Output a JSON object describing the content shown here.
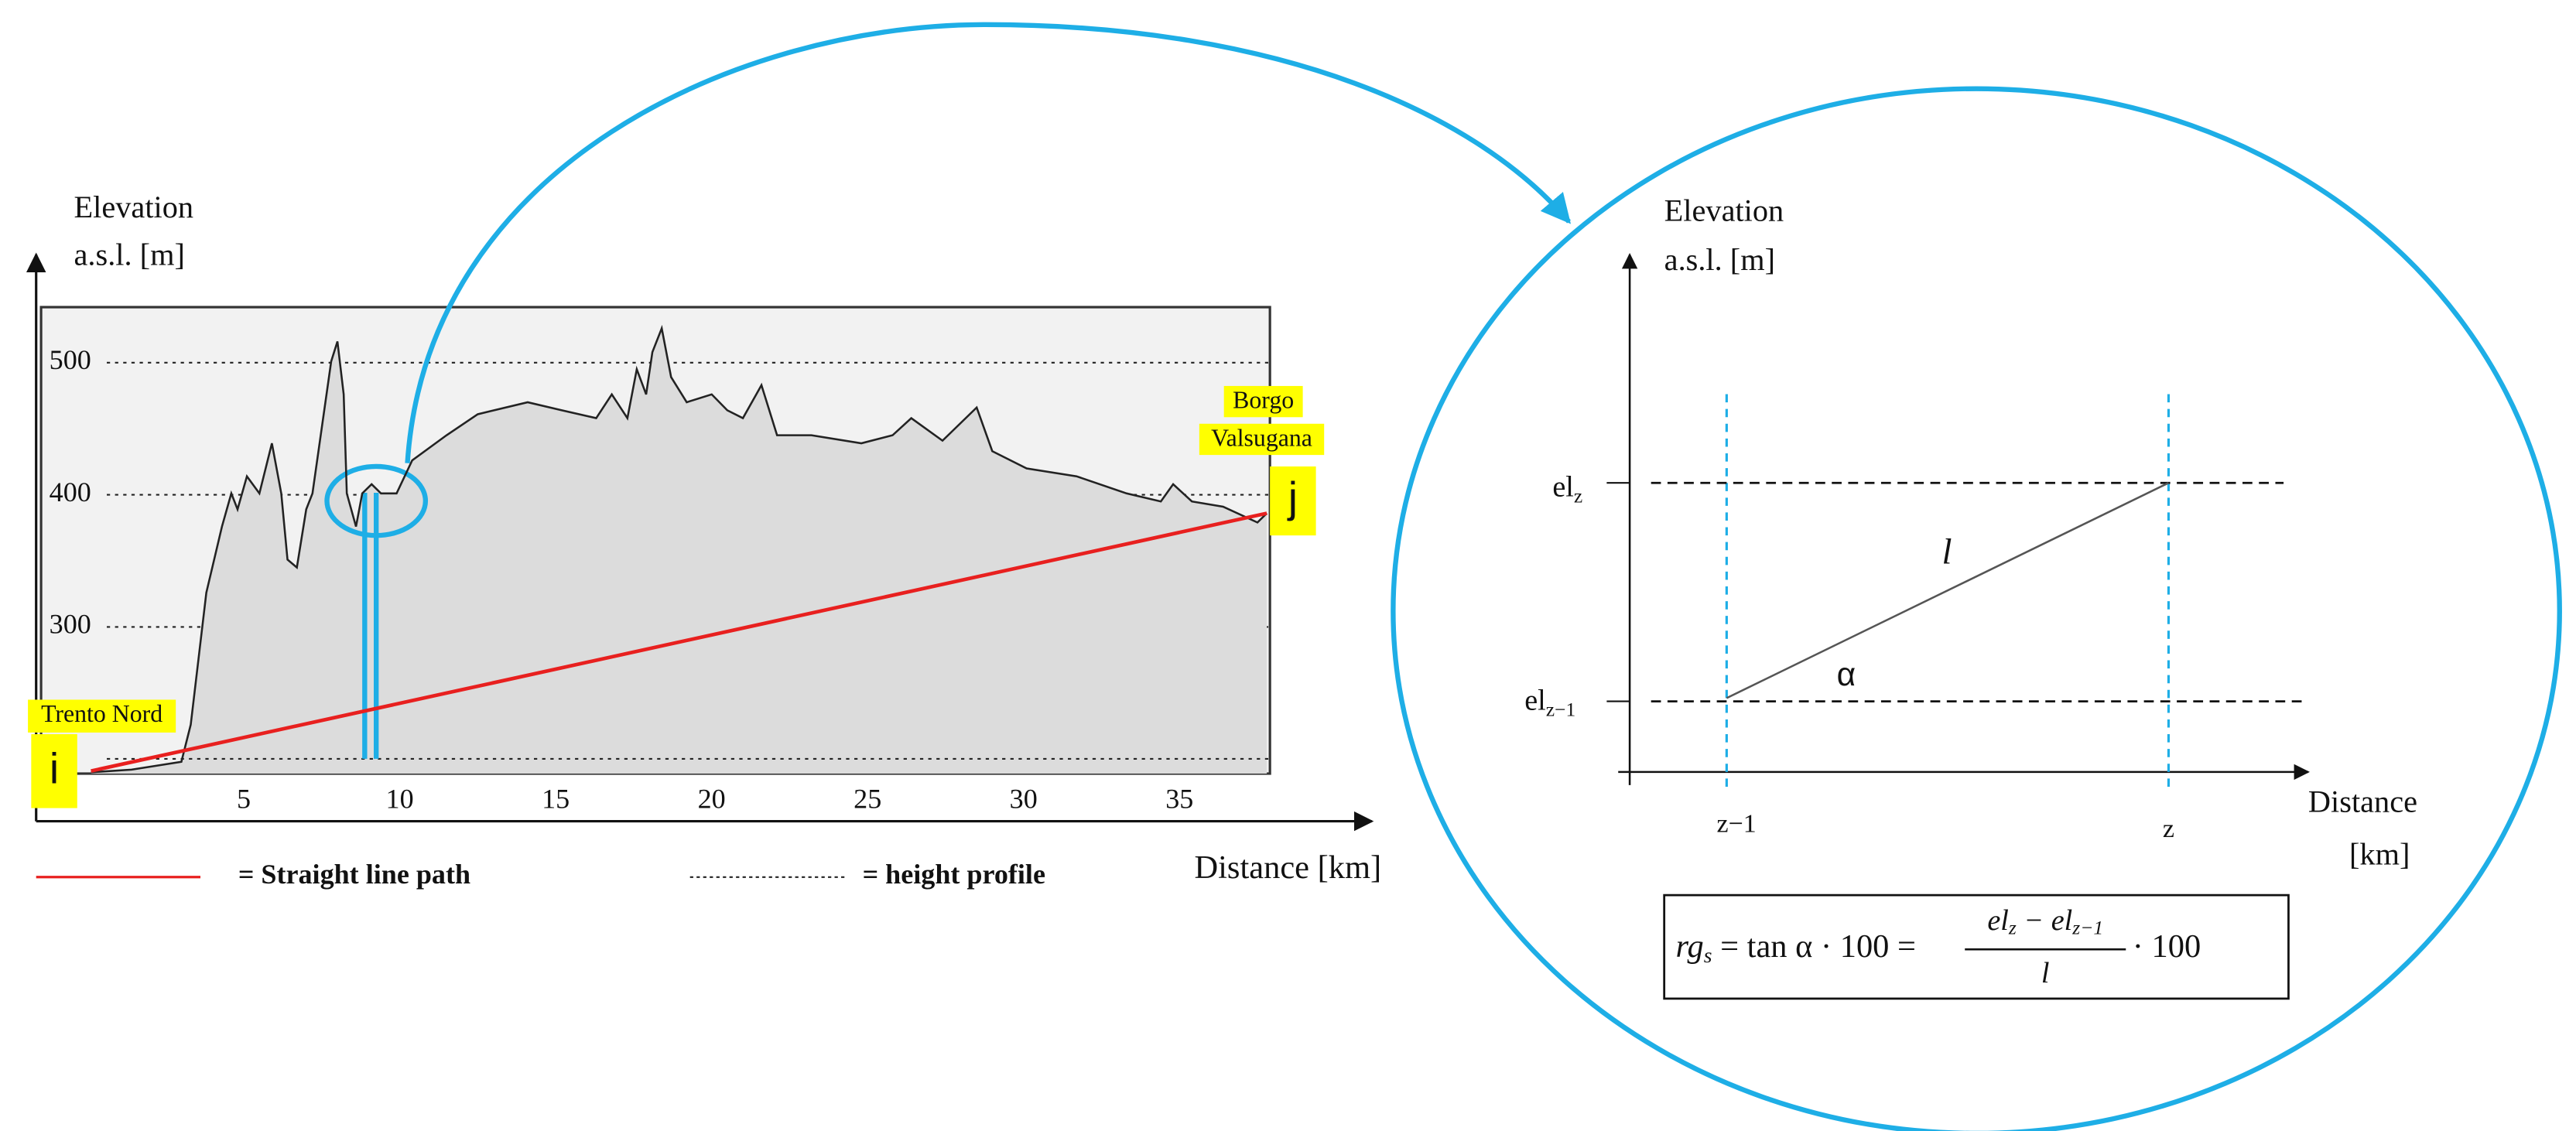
{
  "chart_data": {
    "type": "line",
    "y_label": [
      "Elevation",
      "a.s.l. [m]"
    ],
    "x_label": "Distance [km]",
    "start_label": "Trento Nord",
    "start_marker": "i",
    "end_label": [
      "Borgo",
      "Valsugana"
    ],
    "end_marker": "j",
    "xlim": [
      -1.5,
      37.9
    ],
    "ylim": [
      189,
      542
    ],
    "xticks": [
      5,
      10,
      15,
      20,
      25,
      30,
      35
    ],
    "yticks": [
      300,
      400,
      500
    ],
    "grid": true,
    "series": [
      {
        "name": "= height profile",
        "color": "#222222",
        "x": [
          0.1,
          1.4,
          3.0,
          3.3,
          3.8,
          4.3,
          4.6,
          4.8,
          5.1,
          5.5,
          5.9,
          6.2,
          6.4,
          6.7,
          7.0,
          7.2,
          7.5,
          7.8,
          8.0,
          8.2,
          8.3,
          8.6,
          8.8,
          9.1,
          9.4,
          9.9,
          10.4,
          11.5,
          12.5,
          14.1,
          15.2,
          16.3,
          16.8,
          17.3,
          17.6,
          17.9,
          18.1,
          18.4,
          18.7,
          19.2,
          20.0,
          20.5,
          21.0,
          21.6,
          22.1,
          23.2,
          24.8,
          25.8,
          26.4,
          27.4,
          28.5,
          29.0,
          30.1,
          31.7,
          33.3,
          34.4,
          34.8,
          35.4,
          36.4,
          37.5,
          37.8
        ],
        "values": [
          190,
          192,
          198,
          226,
          326,
          376,
          401,
          389,
          414,
          401,
          439,
          401,
          351,
          345,
          389,
          401,
          451,
          501,
          516,
          476,
          401,
          376,
          401,
          408,
          401,
          401,
          426,
          445,
          461,
          470,
          464,
          458,
          476,
          458,
          495,
          476,
          508,
          526,
          489,
          470,
          476,
          464,
          458,
          483,
          445,
          445,
          439,
          445,
          458,
          441,
          466,
          433,
          420,
          414,
          401,
          395,
          408,
          395,
          391,
          379,
          386
        ]
      },
      {
        "name": "= Straight line path",
        "color": "#e8201f",
        "x": [
          0.1,
          37.8
        ],
        "values": [
          191,
          386
        ]
      }
    ]
  },
  "detail_diagram": {
    "y_label": [
      "Elevation",
      "a.s.l. [m]"
    ],
    "x_label": [
      "Distance",
      "[km]"
    ],
    "el_z": {
      "base": "el",
      "sub": "z"
    },
    "el_z_minus_1": {
      "base": "el",
      "sub": "z−1"
    },
    "x_tick_left": "z−1",
    "x_tick_right": "z",
    "segment_label": "l",
    "angle_label": "α",
    "formula": {
      "lhs_base": "rg",
      "lhs_sub": "s",
      "middle": " = tan α · 100 =",
      "num": [
        {
          "base": "el",
          "sub": "z"
        },
        {
          "base": " − el",
          "sub": "z−1"
        }
      ],
      "den": "l",
      "tail": "· 100"
    }
  }
}
